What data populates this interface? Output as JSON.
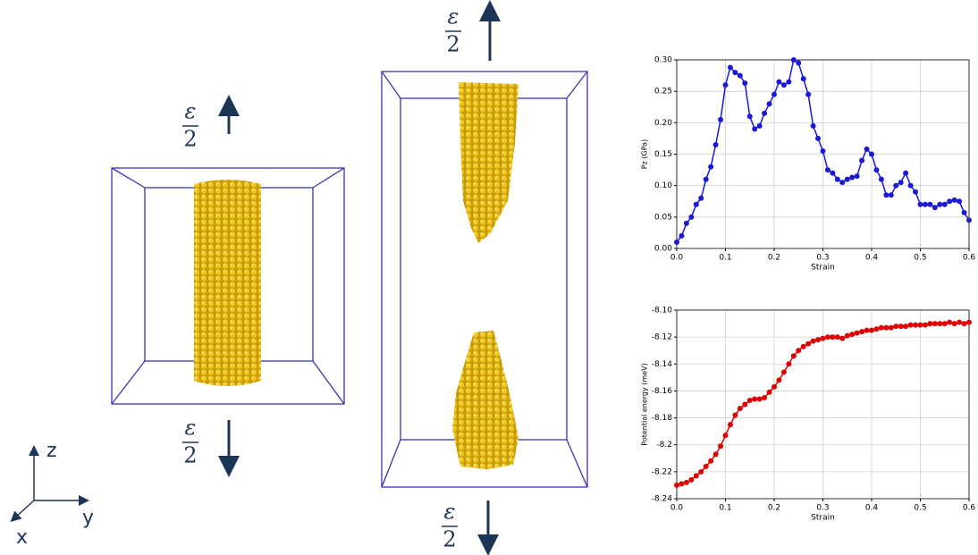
{
  "chart_data": [
    {
      "type": "line",
      "xlabel": "Strain",
      "ylabel": "Pz (GPa)",
      "color": "#1a1ad6",
      "marker": "circle",
      "grid": true,
      "xlim": [
        0,
        0.6
      ],
      "xticks": [
        {
          "value": 0,
          "label": "0.0"
        },
        {
          "value": 0.1,
          "label": "0.1"
        },
        {
          "value": 0.2,
          "label": "0.2"
        },
        {
          "value": 0.3,
          "label": "0.3"
        },
        {
          "value": 0.4,
          "label": "0.4"
        },
        {
          "value": 0.5,
          "label": "0.5"
        },
        {
          "value": 0.6,
          "label": "0.6"
        }
      ],
      "ylim": [
        0,
        0.3
      ],
      "yticks": [
        {
          "value": 0,
          "label": "0.00"
        },
        0.05,
        {
          "value": 0.1,
          "label": "0.10"
        },
        0.15,
        {
          "value": 0.2,
          "label": "0.20"
        },
        0.25,
        {
          "value": 0.3,
          "label": "0.30"
        }
      ],
      "x": [
        0,
        0.01,
        0.02,
        0.03,
        0.04,
        0.05,
        0.06,
        0.07,
        0.08,
        0.09,
        0.1,
        0.11,
        0.12,
        0.13,
        0.14,
        0.15,
        0.16,
        0.17,
        0.18,
        0.19,
        0.2,
        0.21,
        0.22,
        0.23,
        0.24,
        0.25,
        0.26,
        0.27,
        0.28,
        0.29,
        0.3,
        0.31,
        0.32,
        0.33,
        0.34,
        0.35,
        0.36,
        0.37,
        0.38,
        0.39,
        0.4,
        0.41,
        0.42,
        0.43,
        0.44,
        0.45,
        0.46,
        0.47,
        0.48,
        0.49,
        0.5,
        0.51,
        0.52,
        0.53,
        0.54,
        0.55,
        0.56,
        0.57,
        0.58,
        0.59,
        0.6
      ],
      "series": [
        {
          "values": [
            0.01,
            0.02,
            0.04,
            0.05,
            0.07,
            0.08,
            0.11,
            0.13,
            0.165,
            0.205,
            0.26,
            0.288,
            0.28,
            0.275,
            0.263,
            0.21,
            0.19,
            0.195,
            0.215,
            0.23,
            0.245,
            0.265,
            0.26,
            0.265,
            0.3,
            0.295,
            0.27,
            0.245,
            0.195,
            0.175,
            0.155,
            0.125,
            0.12,
            0.11,
            0.105,
            0.11,
            0.113,
            0.115,
            0.14,
            0.158,
            0.15,
            0.125,
            0.11,
            0.085,
            0.085,
            0.1,
            0.105,
            0.12,
            0.1,
            0.09,
            0.07,
            0.07,
            0.07,
            0.065,
            0.07,
            0.07,
            0.075,
            0.077,
            0.075,
            0.057,
            0.045
          ]
        }
      ]
    },
    {
      "type": "line",
      "xlabel": "Strain",
      "ylabel": "Potential energy (meV)",
      "color": "#e00000",
      "marker": "circle",
      "grid": true,
      "xlim": [
        0,
        0.6
      ],
      "xticks": [
        {
          "value": 0,
          "label": "0.0"
        },
        {
          "value": 0.1,
          "label": "0.1"
        },
        {
          "value": 0.2,
          "label": "0.2"
        },
        {
          "value": 0.3,
          "label": "0.3"
        },
        {
          "value": 0.4,
          "label": "0.4"
        },
        {
          "value": 0.5,
          "label": "0.5"
        },
        {
          "value": 0.6,
          "label": "0.6"
        }
      ],
      "ylim": [
        -8.24,
        -8.1
      ],
      "yticks": [
        -8.24,
        -8.22,
        -8.2,
        -8.18,
        -8.16,
        -8.14,
        -8.12,
        {
          "value": -8.1,
          "label": "-8.10"
        }
      ],
      "x": [
        0,
        0.01,
        0.02,
        0.03,
        0.04,
        0.05,
        0.06,
        0.07,
        0.08,
        0.09,
        0.1,
        0.11,
        0.12,
        0.13,
        0.14,
        0.15,
        0.16,
        0.17,
        0.18,
        0.19,
        0.2,
        0.21,
        0.22,
        0.23,
        0.24,
        0.25,
        0.26,
        0.27,
        0.28,
        0.29,
        0.3,
        0.31,
        0.32,
        0.33,
        0.34,
        0.35,
        0.36,
        0.37,
        0.38,
        0.39,
        0.4,
        0.41,
        0.42,
        0.43,
        0.44,
        0.45,
        0.46,
        0.47,
        0.48,
        0.49,
        0.5,
        0.51,
        0.52,
        0.53,
        0.54,
        0.55,
        0.56,
        0.57,
        0.58,
        0.59,
        0.6
      ],
      "series": [
        {
          "values": [
            -8.23,
            -8.229,
            -8.228,
            -8.226,
            -8.223,
            -8.22,
            -8.216,
            -8.212,
            -8.207,
            -8.201,
            -8.193,
            -8.185,
            -8.178,
            -8.173,
            -8.17,
            -8.167,
            -8.166,
            -8.166,
            -8.165,
            -8.161,
            -8.157,
            -8.152,
            -8.146,
            -8.14,
            -8.134,
            -8.13,
            -8.127,
            -8.125,
            -8.123,
            -8.122,
            -8.121,
            -8.12,
            -8.12,
            -8.12,
            -8.121,
            -8.119,
            -8.118,
            -8.117,
            -8.116,
            -8.115,
            -8.115,
            -8.114,
            -8.113,
            -8.113,
            -8.113,
            -8.112,
            -8.112,
            -8.112,
            -8.111,
            -8.111,
            -8.111,
            -8.111,
            -8.11,
            -8.11,
            -8.11,
            -8.11,
            -8.109,
            -8.11,
            -8.109,
            -8.11,
            -8.109
          ]
        }
      ]
    }
  ],
  "strain_labels": [
    {
      "numerator": "ε",
      "denominator": "2"
    },
    {
      "numerator": "ε",
      "denominator": "2"
    },
    {
      "numerator": "ε",
      "denominator": "2"
    },
    {
      "numerator": "ε",
      "denominator": "2"
    }
  ],
  "axes_triad": [
    "z",
    "y",
    "x"
  ]
}
